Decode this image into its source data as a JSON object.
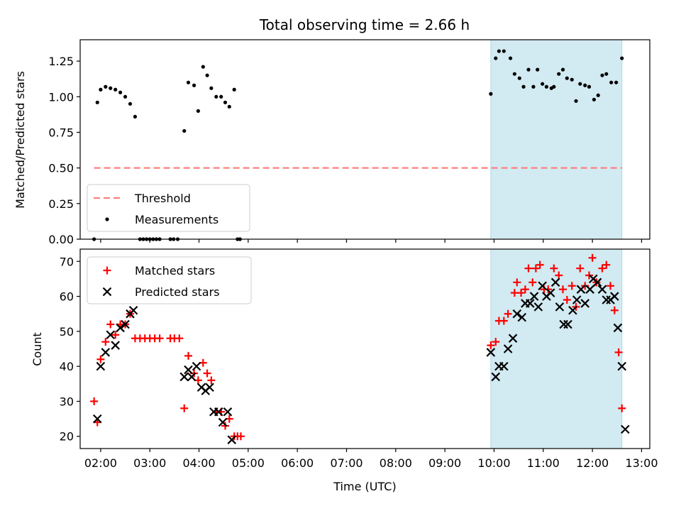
{
  "figure_title": "Total observing time = 2.66 h",
  "colors": {
    "threshold": "#ff7f7f",
    "measurement": "#000000",
    "matched": "#ff0000",
    "predicted": "#000000",
    "highlight": "#add8e6"
  },
  "chart_data": [
    {
      "type": "scatter",
      "title": "Total observing time = 2.66 h",
      "xlabel": "",
      "ylabel": "Matched/Predicted stars",
      "xlim": [
        "01:35",
        "13:10"
      ],
      "ylim": [
        0,
        1.4
      ],
      "yticks": [
        "0.00",
        "0.25",
        "0.50",
        "0.75",
        "1.00",
        "1.25"
      ],
      "ytick_values": [
        0,
        0.25,
        0.5,
        0.75,
        1.0,
        1.25
      ],
      "highlight_span": [
        "09:56",
        "12:36"
      ],
      "threshold": {
        "name": "Threshold",
        "value": 0.5,
        "x": [
          "01:52",
          "12:36"
        ]
      },
      "legend": {
        "position": "lower-left",
        "entries": [
          "Threshold",
          "Measurements"
        ]
      },
      "series": [
        {
          "name": "Measurements",
          "points": [
            [
              "01:52",
              0.0
            ],
            [
              "01:56",
              0.96
            ],
            [
              "02:00",
              1.05
            ],
            [
              "02:06",
              1.07
            ],
            [
              "02:12",
              1.06
            ],
            [
              "02:18",
              1.05
            ],
            [
              "02:24",
              1.03
            ],
            [
              "02:30",
              1.0
            ],
            [
              "02:36",
              0.95
            ],
            [
              "02:42",
              0.86
            ],
            [
              "02:48",
              0.0
            ],
            [
              "02:52",
              0.0
            ],
            [
              "02:56",
              0.0
            ],
            [
              "03:00",
              0.0
            ],
            [
              "03:04",
              0.0
            ],
            [
              "03:08",
              0.0
            ],
            [
              "03:12",
              0.0
            ],
            [
              "03:25",
              0.0
            ],
            [
              "03:29",
              0.0
            ],
            [
              "03:34",
              0.0
            ],
            [
              "03:42",
              0.76
            ],
            [
              "03:47",
              1.1
            ],
            [
              "03:54",
              1.08
            ],
            [
              "03:59",
              0.9
            ],
            [
              "04:05",
              1.21
            ],
            [
              "04:10",
              1.15
            ],
            [
              "04:15",
              1.06
            ],
            [
              "04:21",
              1.0
            ],
            [
              "04:27",
              1.0
            ],
            [
              "04:32",
              0.96
            ],
            [
              "04:37",
              0.93
            ],
            [
              "04:43",
              1.05
            ],
            [
              "04:47",
              0.0
            ],
            [
              "04:50",
              0.0
            ],
            [
              "09:56",
              1.02
            ],
            [
              "10:02",
              1.27
            ],
            [
              "10:06",
              1.32
            ],
            [
              "10:12",
              1.32
            ],
            [
              "10:20",
              1.27
            ],
            [
              "10:25",
              1.16
            ],
            [
              "10:31",
              1.13
            ],
            [
              "10:36",
              1.07
            ],
            [
              "10:42",
              1.19
            ],
            [
              "10:48",
              1.07
            ],
            [
              "10:53",
              1.19
            ],
            [
              "10:59",
              1.09
            ],
            [
              "11:04",
              1.07
            ],
            [
              "11:10",
              1.06
            ],
            [
              "11:13",
              1.07
            ],
            [
              "11:19",
              1.16
            ],
            [
              "11:24",
              1.19
            ],
            [
              "11:29",
              1.13
            ],
            [
              "11:35",
              1.12
            ],
            [
              "11:40",
              0.97
            ],
            [
              "11:45",
              1.09
            ],
            [
              "11:51",
              1.08
            ],
            [
              "11:56",
              1.07
            ],
            [
              "12:02",
              0.98
            ],
            [
              "12:07",
              1.01
            ],
            [
              "12:12",
              1.15
            ],
            [
              "12:17",
              1.16
            ],
            [
              "12:23",
              1.1
            ],
            [
              "12:29",
              1.1
            ],
            [
              "12:36",
              1.27
            ]
          ]
        }
      ]
    },
    {
      "type": "scatter",
      "title": "",
      "xlabel": "Time (UTC)",
      "ylabel": "Count",
      "xlim": [
        "01:35",
        "13:10"
      ],
      "ylim": [
        16.5,
        73.5
      ],
      "xticks": [
        "02:00",
        "03:00",
        "04:00",
        "05:00",
        "06:00",
        "07:00",
        "08:00",
        "09:00",
        "10:00",
        "11:00",
        "12:00",
        "13:00"
      ],
      "yticks": [
        "20",
        "30",
        "40",
        "50",
        "60",
        "70"
      ],
      "ytick_values": [
        20,
        30,
        40,
        50,
        60,
        70
      ],
      "highlight_span": [
        "09:56",
        "12:36"
      ],
      "legend": {
        "position": "upper-left",
        "entries": [
          "Matched stars",
          "Predicted stars"
        ]
      },
      "series": [
        {
          "name": "Matched stars",
          "marker": "+",
          "points": [
            [
              "01:52",
              30
            ],
            [
              "01:56",
              24
            ],
            [
              "02:00",
              42
            ],
            [
              "02:06",
              47
            ],
            [
              "02:12",
              52
            ],
            [
              "02:18",
              49
            ],
            [
              "02:24",
              52
            ],
            [
              "02:30",
              52
            ],
            [
              "02:36",
              55
            ],
            [
              "02:42",
              48
            ],
            [
              "02:48",
              48
            ],
            [
              "02:54",
              48
            ],
            [
              "03:00",
              48
            ],
            [
              "03:06",
              48
            ],
            [
              "03:12",
              48
            ],
            [
              "03:25",
              48
            ],
            [
              "03:30",
              48
            ],
            [
              "03:36",
              48
            ],
            [
              "03:42",
              28
            ],
            [
              "03:47",
              43
            ],
            [
              "03:54",
              38
            ],
            [
              "03:59",
              36
            ],
            [
              "04:05",
              41
            ],
            [
              "04:10",
              38
            ],
            [
              "04:15",
              36
            ],
            [
              "04:21",
              27
            ],
            [
              "04:27",
              27
            ],
            [
              "04:32",
              23
            ],
            [
              "04:37",
              25
            ],
            [
              "04:43",
              20
            ],
            [
              "04:47",
              20
            ],
            [
              "04:51",
              20
            ],
            [
              "09:56",
              46
            ],
            [
              "10:02",
              47
            ],
            [
              "10:06",
              53
            ],
            [
              "10:12",
              53
            ],
            [
              "10:17",
              55
            ],
            [
              "10:25",
              61
            ],
            [
              "10:28",
              64
            ],
            [
              "10:33",
              61
            ],
            [
              "10:38",
              62
            ],
            [
              "10:42",
              68
            ],
            [
              "10:47",
              64
            ],
            [
              "10:51",
              68
            ],
            [
              "10:56",
              69
            ],
            [
              "11:01",
              62
            ],
            [
              "11:06",
              62
            ],
            [
              "11:13",
              68
            ],
            [
              "11:19",
              66
            ],
            [
              "11:24",
              62
            ],
            [
              "11:29",
              59
            ],
            [
              "11:35",
              63
            ],
            [
              "11:40",
              57
            ],
            [
              "11:45",
              68
            ],
            [
              "11:51",
              63
            ],
            [
              "11:56",
              66
            ],
            [
              "12:00",
              71
            ],
            [
              "12:05",
              64
            ],
            [
              "12:12",
              68
            ],
            [
              "12:17",
              69
            ],
            [
              "12:22",
              63
            ],
            [
              "12:27",
              56
            ],
            [
              "12:32",
              44
            ],
            [
              "12:36",
              28
            ]
          ]
        },
        {
          "name": "Predicted stars",
          "marker": "x",
          "points": [
            [
              "01:56",
              25
            ],
            [
              "02:00",
              40
            ],
            [
              "02:06",
              44
            ],
            [
              "02:12",
              49
            ],
            [
              "02:18",
              46
            ],
            [
              "02:24",
              51
            ],
            [
              "02:30",
              52
            ],
            [
              "02:36",
              55
            ],
            [
              "02:40",
              56
            ],
            [
              "03:42",
              37
            ],
            [
              "03:47",
              39
            ],
            [
              "03:51",
              37
            ],
            [
              "03:57",
              40
            ],
            [
              "04:03",
              34
            ],
            [
              "04:08",
              33
            ],
            [
              "04:13",
              34
            ],
            [
              "04:18",
              27
            ],
            [
              "04:24",
              27
            ],
            [
              "04:29",
              24
            ],
            [
              "04:35",
              27
            ],
            [
              "04:40",
              19
            ],
            [
              "09:56",
              44
            ],
            [
              "10:02",
              37
            ],
            [
              "10:06",
              40
            ],
            [
              "10:12",
              40
            ],
            [
              "10:17",
              45
            ],
            [
              "10:23",
              48
            ],
            [
              "10:28",
              55
            ],
            [
              "10:34",
              54
            ],
            [
              "10:38",
              58
            ],
            [
              "10:44",
              58
            ],
            [
              "10:49",
              60
            ],
            [
              "10:54",
              57
            ],
            [
              "10:59",
              63
            ],
            [
              "11:04",
              60
            ],
            [
              "11:09",
              61
            ],
            [
              "11:15",
              64
            ],
            [
              "11:20",
              57
            ],
            [
              "11:25",
              52
            ],
            [
              "11:30",
              52
            ],
            [
              "11:36",
              56
            ],
            [
              "11:41",
              59
            ],
            [
              "11:46",
              62
            ],
            [
              "11:51",
              58
            ],
            [
              "11:57",
              62
            ],
            [
              "12:01",
              65
            ],
            [
              "12:06",
              64
            ],
            [
              "12:12",
              62
            ],
            [
              "12:17",
              59
            ],
            [
              "12:22",
              59
            ],
            [
              "12:27",
              60
            ],
            [
              "12:31",
              51
            ],
            [
              "12:36",
              40
            ],
            [
              "12:40",
              22
            ]
          ]
        }
      ]
    }
  ]
}
